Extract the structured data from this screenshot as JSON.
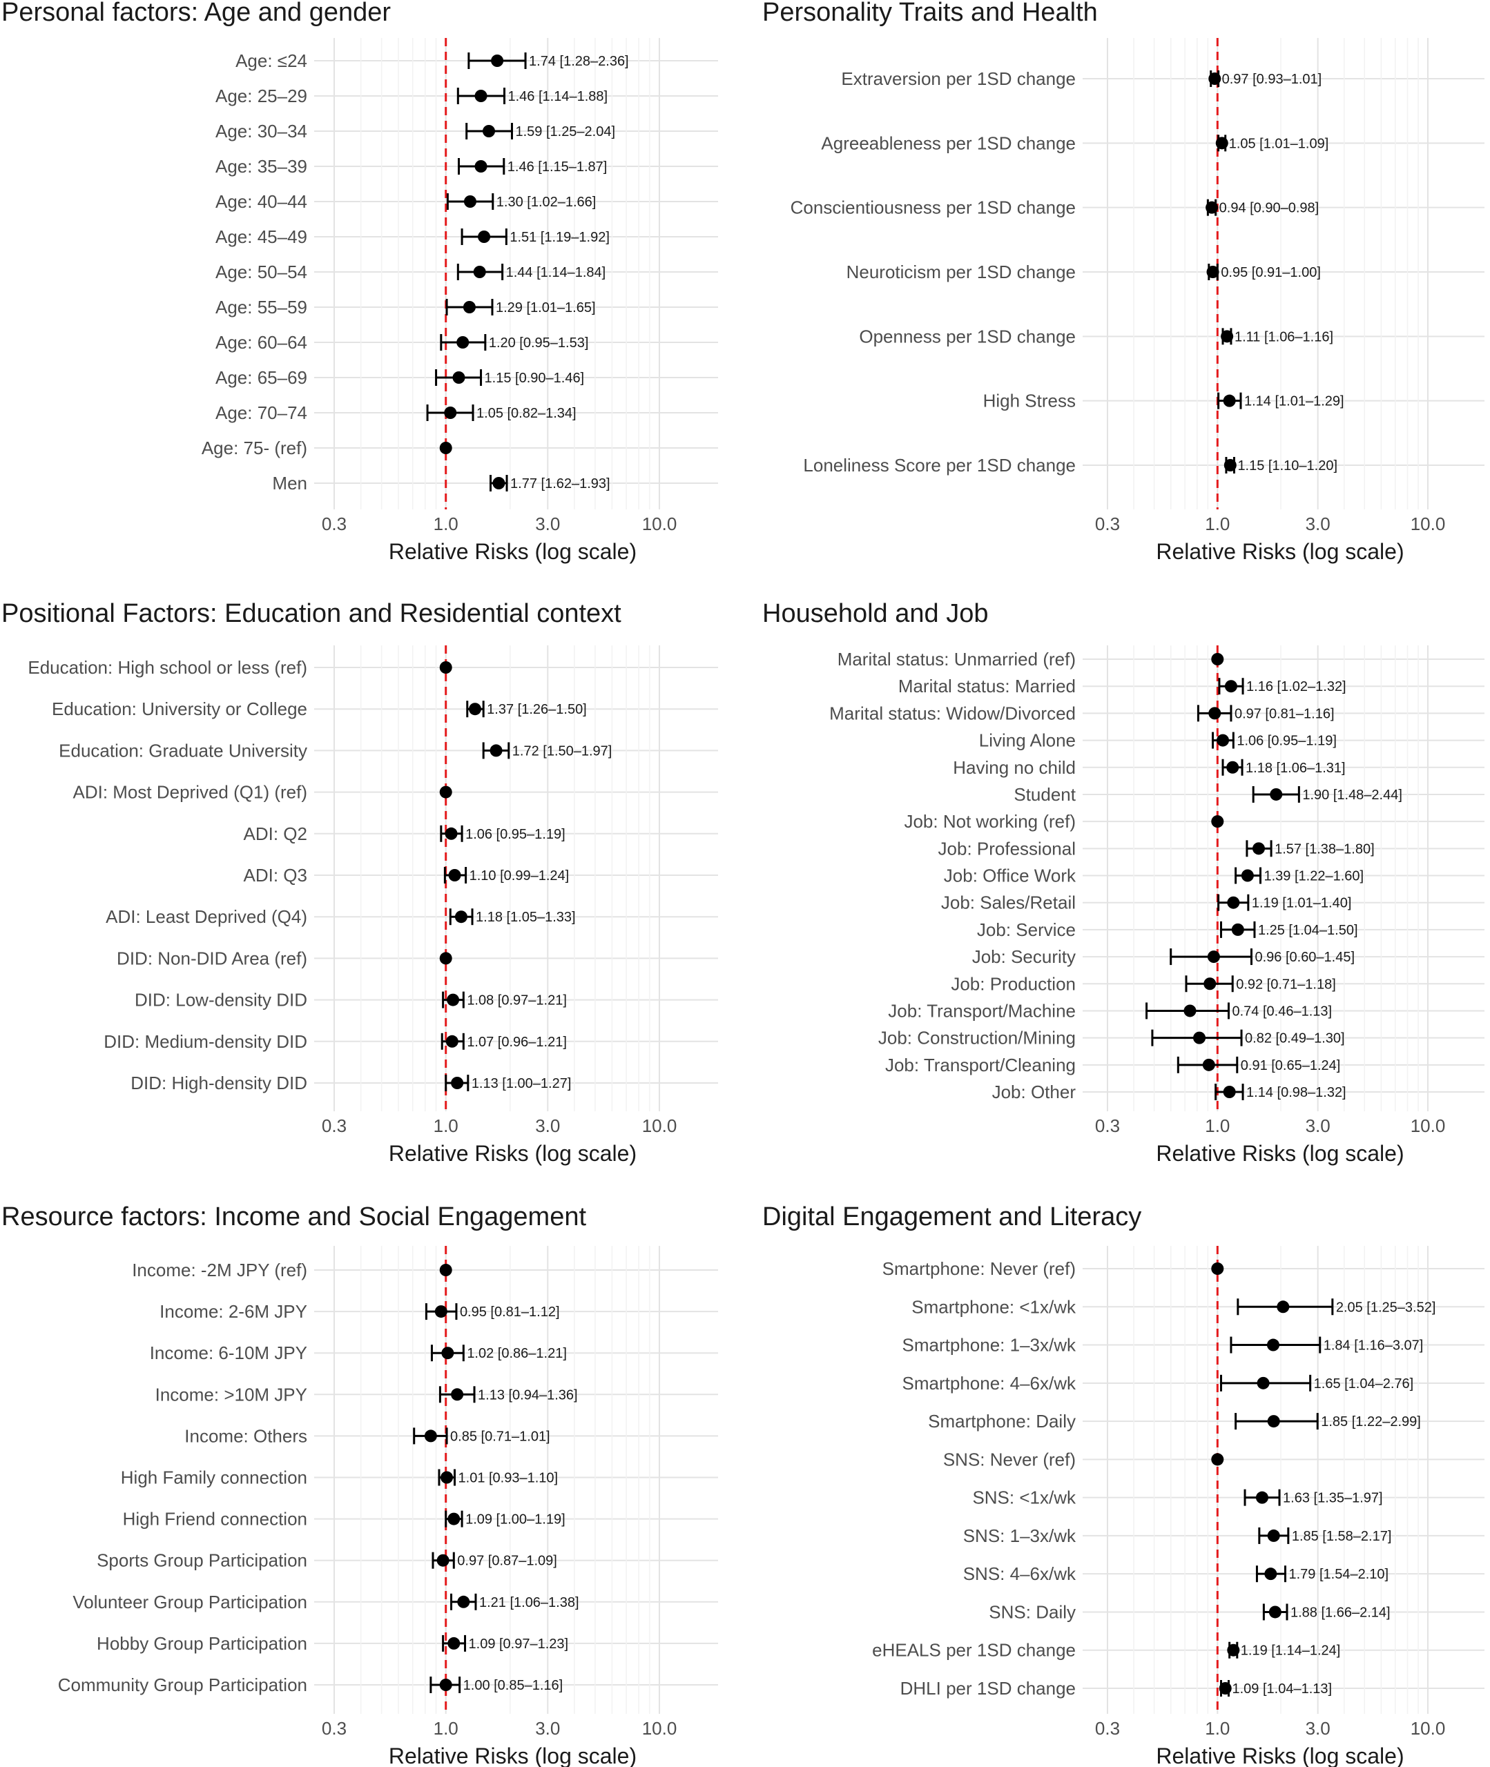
{
  "figure": {
    "ref_line_color": "#e41a1c",
    "point_color": "#000000"
  },
  "chart_data": [
    {
      "type": "forest",
      "title": "Personal factors: Age and gender",
      "xlabel": "Relative Risks (log scale)",
      "xscale": "log",
      "xlim": [
        0.22,
        16
      ],
      "ticks": [
        {
          "value": 0.3,
          "label": "0.3"
        },
        {
          "value": 1.0,
          "label": "1.0"
        },
        {
          "value": 3.0,
          "label": "3.0"
        },
        {
          "value": 10.0,
          "label": "10.0"
        }
      ],
      "reference": 1.0,
      "rows": [
        {
          "label": "Age: ≤24",
          "est": 1.74,
          "lo": 1.28,
          "hi": 2.36,
          "text": "1.74 [1.28–2.36]"
        },
        {
          "label": "Age: 25–29",
          "est": 1.46,
          "lo": 1.14,
          "hi": 1.88,
          "text": "1.46 [1.14–1.88]"
        },
        {
          "label": "Age: 30–34",
          "est": 1.59,
          "lo": 1.25,
          "hi": 2.04,
          "text": "1.59 [1.25–2.04]"
        },
        {
          "label": "Age: 35–39",
          "est": 1.46,
          "lo": 1.15,
          "hi": 1.87,
          "text": "1.46 [1.15–1.87]"
        },
        {
          "label": "Age: 40–44",
          "est": 1.3,
          "lo": 1.02,
          "hi": 1.66,
          "text": "1.30 [1.02–1.66]"
        },
        {
          "label": "Age: 45–49",
          "est": 1.51,
          "lo": 1.19,
          "hi": 1.92,
          "text": "1.51 [1.19–1.92]"
        },
        {
          "label": "Age: 50–54",
          "est": 1.44,
          "lo": 1.14,
          "hi": 1.84,
          "text": "1.44 [1.14–1.84]"
        },
        {
          "label": "Age: 55–59",
          "est": 1.29,
          "lo": 1.01,
          "hi": 1.65,
          "text": "1.29 [1.01–1.65]"
        },
        {
          "label": "Age: 60–64",
          "est": 1.2,
          "lo": 0.95,
          "hi": 1.53,
          "text": "1.20 [0.95–1.53]"
        },
        {
          "label": "Age: 65–69",
          "est": 1.15,
          "lo": 0.9,
          "hi": 1.46,
          "text": "1.15 [0.90–1.46]"
        },
        {
          "label": "Age: 70–74",
          "est": 1.05,
          "lo": 0.82,
          "hi": 1.34,
          "text": "1.05 [0.82–1.34]"
        },
        {
          "label": "Age: 75- (ref)",
          "est": 1.0,
          "lo": null,
          "hi": null,
          "text": ""
        },
        {
          "label": "Men",
          "est": 1.77,
          "lo": 1.62,
          "hi": 1.93,
          "text": "1.77 [1.62–1.93]"
        }
      ]
    },
    {
      "type": "forest",
      "title": "Personality Traits and Health",
      "xlabel": "Relative Risks (log scale)",
      "xscale": "log",
      "xlim": [
        0.22,
        16
      ],
      "ticks": [
        {
          "value": 0.3,
          "label": "0.3"
        },
        {
          "value": 1.0,
          "label": "1.0"
        },
        {
          "value": 3.0,
          "label": "3.0"
        },
        {
          "value": 10.0,
          "label": "10.0"
        }
      ],
      "reference": 1.0,
      "rows": [
        {
          "label": "Extraversion per 1SD change",
          "est": 0.97,
          "lo": 0.93,
          "hi": 1.01,
          "text": "0.97 [0.93–1.01]"
        },
        {
          "label": "Agreeableness per 1SD change",
          "est": 1.05,
          "lo": 1.01,
          "hi": 1.09,
          "text": "1.05 [1.01–1.09]"
        },
        {
          "label": "Conscientiousness per 1SD change",
          "est": 0.94,
          "lo": 0.9,
          "hi": 0.98,
          "text": "0.94 [0.90–0.98]"
        },
        {
          "label": "Neuroticism per 1SD change",
          "est": 0.95,
          "lo": 0.91,
          "hi": 1.0,
          "text": "0.95 [0.91–1.00]"
        },
        {
          "label": "Openness per 1SD change",
          "est": 1.11,
          "lo": 1.06,
          "hi": 1.16,
          "text": "1.11 [1.06–1.16]"
        },
        {
          "label": "High Stress",
          "est": 1.14,
          "lo": 1.01,
          "hi": 1.29,
          "text": "1.14 [1.01–1.29]"
        },
        {
          "label": "Loneliness Score per 1SD change",
          "est": 1.15,
          "lo": 1.1,
          "hi": 1.2,
          "text": "1.15 [1.10–1.20]"
        }
      ]
    },
    {
      "type": "forest",
      "title": "Positional Factors: Education and Residential context",
      "xlabel": "Relative Risks (log scale)",
      "xscale": "log",
      "xlim": [
        0.22,
        16
      ],
      "ticks": [
        {
          "value": 0.3,
          "label": "0.3"
        },
        {
          "value": 1.0,
          "label": "1.0"
        },
        {
          "value": 3.0,
          "label": "3.0"
        },
        {
          "value": 10.0,
          "label": "10.0"
        }
      ],
      "reference": 1.0,
      "rows": [
        {
          "label": "Education: High school or less (ref)",
          "est": 1.0,
          "lo": null,
          "hi": null,
          "text": ""
        },
        {
          "label": "Education: University or College",
          "est": 1.37,
          "lo": 1.26,
          "hi": 1.5,
          "text": "1.37 [1.26–1.50]"
        },
        {
          "label": "Education: Graduate University",
          "est": 1.72,
          "lo": 1.5,
          "hi": 1.97,
          "text": "1.72 [1.50–1.97]"
        },
        {
          "label": "ADI: Most Deprived (Q1) (ref)",
          "est": 1.0,
          "lo": null,
          "hi": null,
          "text": ""
        },
        {
          "label": "ADI: Q2",
          "est": 1.06,
          "lo": 0.95,
          "hi": 1.19,
          "text": "1.06 [0.95–1.19]"
        },
        {
          "label": "ADI: Q3",
          "est": 1.1,
          "lo": 0.99,
          "hi": 1.24,
          "text": "1.10 [0.99–1.24]"
        },
        {
          "label": "ADI: Least Deprived (Q4)",
          "est": 1.18,
          "lo": 1.05,
          "hi": 1.33,
          "text": "1.18 [1.05–1.33]"
        },
        {
          "label": "DID: Non-DID Area (ref)",
          "est": 1.0,
          "lo": null,
          "hi": null,
          "text": ""
        },
        {
          "label": "DID: Low-density DID",
          "est": 1.08,
          "lo": 0.97,
          "hi": 1.21,
          "text": "1.08 [0.97–1.21]"
        },
        {
          "label": "DID: Medium-density DID",
          "est": 1.07,
          "lo": 0.96,
          "hi": 1.21,
          "text": "1.07 [0.96–1.21]"
        },
        {
          "label": "DID: High-density DID",
          "est": 1.13,
          "lo": 1.0,
          "hi": 1.27,
          "text": "1.13 [1.00–1.27]"
        }
      ]
    },
    {
      "type": "forest",
      "title": "Household and Job",
      "xlabel": "Relative Risks (log scale)",
      "xscale": "log",
      "xlim": [
        0.22,
        16
      ],
      "ticks": [
        {
          "value": 0.3,
          "label": "0.3"
        },
        {
          "value": 1.0,
          "label": "1.0"
        },
        {
          "value": 3.0,
          "label": "3.0"
        },
        {
          "value": 10.0,
          "label": "10.0"
        }
      ],
      "reference": 1.0,
      "rows": [
        {
          "label": "Marital status: Unmarried (ref)",
          "est": 1.0,
          "lo": null,
          "hi": null,
          "text": ""
        },
        {
          "label": "Marital status: Married",
          "est": 1.16,
          "lo": 1.02,
          "hi": 1.32,
          "text": "1.16 [1.02–1.32]"
        },
        {
          "label": "Marital status: Widow/Divorced",
          "est": 0.97,
          "lo": 0.81,
          "hi": 1.16,
          "text": "0.97 [0.81–1.16]"
        },
        {
          "label": "Living Alone",
          "est": 1.06,
          "lo": 0.95,
          "hi": 1.19,
          "text": "1.06 [0.95–1.19]"
        },
        {
          "label": "Having no child",
          "est": 1.18,
          "lo": 1.06,
          "hi": 1.31,
          "text": "1.18 [1.06–1.31]"
        },
        {
          "label": "Student",
          "est": 1.9,
          "lo": 1.48,
          "hi": 2.44,
          "text": "1.90 [1.48–2.44]"
        },
        {
          "label": "Job: Not working (ref)",
          "est": 1.0,
          "lo": null,
          "hi": null,
          "text": ""
        },
        {
          "label": "Job: Professional",
          "est": 1.57,
          "lo": 1.38,
          "hi": 1.8,
          "text": "1.57 [1.38–1.80]"
        },
        {
          "label": "Job: Office Work",
          "est": 1.39,
          "lo": 1.22,
          "hi": 1.6,
          "text": "1.39 [1.22–1.60]"
        },
        {
          "label": "Job: Sales/Retail",
          "est": 1.19,
          "lo": 1.01,
          "hi": 1.4,
          "text": "1.19 [1.01–1.40]"
        },
        {
          "label": "Job: Service",
          "est": 1.25,
          "lo": 1.04,
          "hi": 1.5,
          "text": "1.25 [1.04–1.50]"
        },
        {
          "label": "Job: Security",
          "est": 0.96,
          "lo": 0.6,
          "hi": 1.45,
          "text": "0.96 [0.60–1.45]"
        },
        {
          "label": "Job: Production",
          "est": 0.92,
          "lo": 0.71,
          "hi": 1.18,
          "text": "0.92 [0.71–1.18]"
        },
        {
          "label": "Job: Transport/Machine",
          "est": 0.74,
          "lo": 0.46,
          "hi": 1.13,
          "text": "0.74 [0.46–1.13]"
        },
        {
          "label": "Job: Construction/Mining",
          "est": 0.82,
          "lo": 0.49,
          "hi": 1.3,
          "text": "0.82 [0.49–1.30]"
        },
        {
          "label": "Job: Transport/Cleaning",
          "est": 0.91,
          "lo": 0.65,
          "hi": 1.24,
          "text": "0.91 [0.65–1.24]"
        },
        {
          "label": "Job: Other",
          "est": 1.14,
          "lo": 0.98,
          "hi": 1.32,
          "text": "1.14 [0.98–1.32]"
        }
      ]
    },
    {
      "type": "forest",
      "title": "Resource factors: Income and Social Engagement",
      "xlabel": "Relative Risks (log scale)",
      "xscale": "log",
      "xlim": [
        0.22,
        16
      ],
      "ticks": [
        {
          "value": 0.3,
          "label": "0.3"
        },
        {
          "value": 1.0,
          "label": "1.0"
        },
        {
          "value": 3.0,
          "label": "3.0"
        },
        {
          "value": 10.0,
          "label": "10.0"
        }
      ],
      "reference": 1.0,
      "rows": [
        {
          "label": "Income: -2M JPY (ref)",
          "est": 1.0,
          "lo": null,
          "hi": null,
          "text": ""
        },
        {
          "label": "Income: 2-6M JPY",
          "est": 0.95,
          "lo": 0.81,
          "hi": 1.12,
          "text": "0.95 [0.81–1.12]"
        },
        {
          "label": "Income: 6-10M JPY",
          "est": 1.02,
          "lo": 0.86,
          "hi": 1.21,
          "text": "1.02 [0.86–1.21]"
        },
        {
          "label": "Income: >10M JPY",
          "est": 1.13,
          "lo": 0.94,
          "hi": 1.36,
          "text": "1.13 [0.94–1.36]"
        },
        {
          "label": "Income: Others",
          "est": 0.85,
          "lo": 0.71,
          "hi": 1.01,
          "text": "0.85 [0.71–1.01]"
        },
        {
          "label": "High Family connection",
          "est": 1.01,
          "lo": 0.93,
          "hi": 1.1,
          "text": "1.01 [0.93–1.10]"
        },
        {
          "label": "High Friend connection",
          "est": 1.09,
          "lo": 1.0,
          "hi": 1.19,
          "text": "1.09 [1.00–1.19]"
        },
        {
          "label": "Sports Group Participation",
          "est": 0.97,
          "lo": 0.87,
          "hi": 1.09,
          "text": "0.97 [0.87–1.09]"
        },
        {
          "label": "Volunteer Group Participation",
          "est": 1.21,
          "lo": 1.06,
          "hi": 1.38,
          "text": "1.21 [1.06–1.38]"
        },
        {
          "label": "Hobby Group Participation",
          "est": 1.09,
          "lo": 0.97,
          "hi": 1.23,
          "text": "1.09 [0.97–1.23]"
        },
        {
          "label": "Community Group Participation",
          "est": 1.0,
          "lo": 0.85,
          "hi": 1.16,
          "text": "1.00 [0.85–1.16]"
        }
      ]
    },
    {
      "type": "forest",
      "title": "Digital Engagement and Literacy",
      "xlabel": "Relative Risks (log scale)",
      "xscale": "log",
      "xlim": [
        0.22,
        16
      ],
      "ticks": [
        {
          "value": 0.3,
          "label": "0.3"
        },
        {
          "value": 1.0,
          "label": "1.0"
        },
        {
          "value": 3.0,
          "label": "3.0"
        },
        {
          "value": 10.0,
          "label": "10.0"
        }
      ],
      "reference": 1.0,
      "rows": [
        {
          "label": "Smartphone: Never (ref)",
          "est": 1.0,
          "lo": null,
          "hi": null,
          "text": ""
        },
        {
          "label": "Smartphone: <1x/wk",
          "est": 2.05,
          "lo": 1.25,
          "hi": 3.52,
          "text": "2.05 [1.25–3.52]"
        },
        {
          "label": "Smartphone: 1–3x/wk",
          "est": 1.84,
          "lo": 1.16,
          "hi": 3.07,
          "text": "1.84 [1.16–3.07]"
        },
        {
          "label": "Smartphone: 4–6x/wk",
          "est": 1.65,
          "lo": 1.04,
          "hi": 2.76,
          "text": "1.65 [1.04–2.76]"
        },
        {
          "label": "Smartphone: Daily",
          "est": 1.85,
          "lo": 1.22,
          "hi": 2.99,
          "text": "1.85 [1.22–2.99]"
        },
        {
          "label": "SNS: Never (ref)",
          "est": 1.0,
          "lo": null,
          "hi": null,
          "text": ""
        },
        {
          "label": "SNS: <1x/wk",
          "est": 1.63,
          "lo": 1.35,
          "hi": 1.97,
          "text": "1.63 [1.35–1.97]"
        },
        {
          "label": "SNS: 1–3x/wk",
          "est": 1.85,
          "lo": 1.58,
          "hi": 2.17,
          "text": "1.85 [1.58–2.17]"
        },
        {
          "label": "SNS: 4–6x/wk",
          "est": 1.79,
          "lo": 1.54,
          "hi": 2.1,
          "text": "1.79 [1.54–2.10]"
        },
        {
          "label": "SNS: Daily",
          "est": 1.88,
          "lo": 1.66,
          "hi": 2.14,
          "text": "1.88 [1.66–2.14]"
        },
        {
          "label": "eHEALS per 1SD change",
          "est": 1.19,
          "lo": 1.14,
          "hi": 1.24,
          "text": "1.19 [1.14–1.24]"
        },
        {
          "label": "DHLI per 1SD change",
          "est": 1.09,
          "lo": 1.04,
          "hi": 1.13,
          "text": "1.09 [1.04–1.13]"
        }
      ]
    }
  ]
}
